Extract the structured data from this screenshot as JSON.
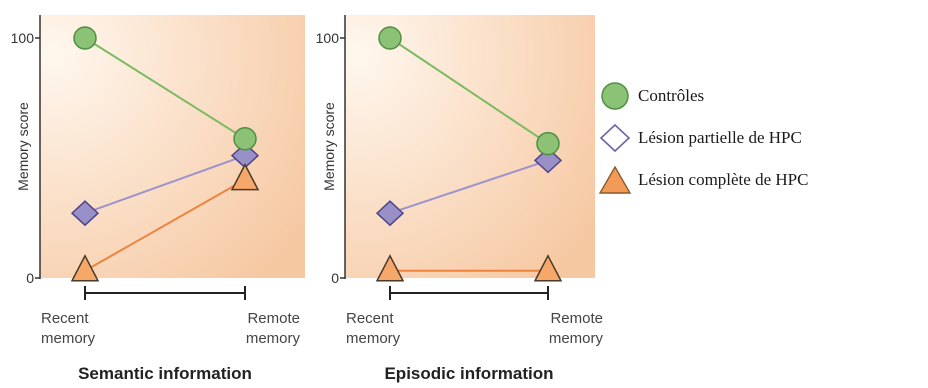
{
  "chart_data": [
    {
      "type": "line",
      "title": "Semantic information",
      "ylabel": "Memory score",
      "yticks": [
        "0",
        "100"
      ],
      "ylim": [
        0,
        100
      ],
      "categories": [
        "Recent memory",
        "Remote memory"
      ],
      "category_lines": [
        [
          "Recent",
          "memory"
        ],
        [
          "Remote",
          "memory"
        ]
      ],
      "series": [
        {
          "key": "controls",
          "values": [
            100,
            58
          ]
        },
        {
          "key": "partial",
          "values": [
            27,
            51
          ]
        },
        {
          "key": "complete",
          "values": [
            3,
            41
          ]
        }
      ]
    },
    {
      "type": "line",
      "title": "Episodic information",
      "ylabel": "Memory score",
      "yticks": [
        "0",
        "100"
      ],
      "ylim": [
        0,
        100
      ],
      "categories": [
        "Recent memory",
        "Remote memory"
      ],
      "category_lines": [
        [
          "Recent",
          "memory"
        ],
        [
          "Remote",
          "memory"
        ]
      ],
      "series": [
        {
          "key": "controls",
          "values": [
            100,
            56
          ]
        },
        {
          "key": "partial",
          "values": [
            27,
            49
          ]
        },
        {
          "key": "complete",
          "values": [
            3,
            3
          ]
        }
      ]
    }
  ],
  "legend": [
    {
      "key": "controls",
      "label": "Contrôles"
    },
    {
      "key": "partial",
      "label": "Lésion partielle de HPC"
    },
    {
      "key": "complete",
      "label": "Lésion complète de HPC"
    }
  ],
  "colors": {
    "controls_fill": "#8cc276",
    "controls_stroke": "#4f8f43",
    "controls_line": "#7cba63",
    "partial_fill": "#9a90c8",
    "partial_stroke": "#4d4589",
    "partial_line": "#9d93cc",
    "complete_fill": "#f6a86a",
    "complete_stroke": "#4a3a2a",
    "complete_line": "#ee8340",
    "legend_partial_fill": "#ffffff",
    "legend_partial_stroke": "#6a63a8",
    "legend_complete_fill": "#f29b58",
    "legend_complete_stroke": "#8a5a2a",
    "bg_light": "#fff7ee",
    "bg_dark": "#f6c8a2",
    "axis": "#333333",
    "text": "#333333"
  },
  "icons": {
    "controls": "circle-marker",
    "partial": "diamond-marker",
    "complete": "triangle-marker"
  }
}
